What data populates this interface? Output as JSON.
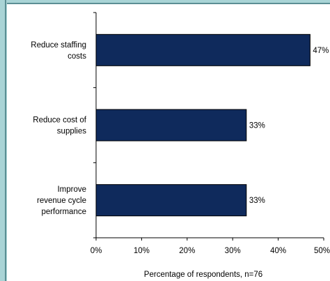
{
  "chart_data": {
    "type": "bar",
    "orientation": "horizontal",
    "categories": [
      [
        "Reduce staffing",
        "costs"
      ],
      [
        "Reduce cost of",
        "supplies"
      ],
      [
        "Improve",
        "revenue cycle",
        "performance"
      ]
    ],
    "values": [
      47,
      33,
      33
    ],
    "data_labels": [
      "47%",
      "33%",
      "33%"
    ],
    "xlabel": "Percentage of respondents, n=76",
    "xlim": [
      0,
      50
    ],
    "xticks": [
      0,
      10,
      20,
      30,
      40,
      50
    ],
    "xtick_labels": [
      "0%",
      "10%",
      "20%",
      "30%",
      "40%",
      "50%"
    ],
    "grid": false,
    "bar_color": "#0f2a5c",
    "bar_edge_color": "#000000"
  }
}
